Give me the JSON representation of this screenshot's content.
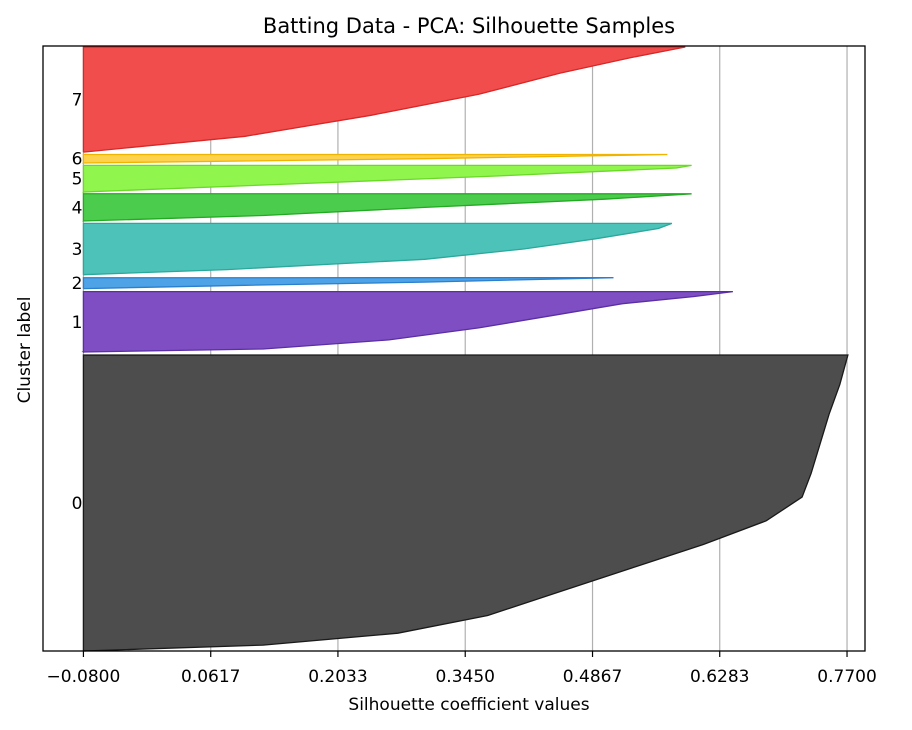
{
  "chart_data": {
    "type": "area",
    "title": "Batting Data - PCA: Silhouette Samples",
    "xlabel": "Silhouette coefficient values",
    "ylabel": "Cluster label",
    "xticks": [
      -0.08,
      0.0617,
      0.2033,
      0.345,
      0.4867,
      0.6283,
      0.77
    ],
    "xtick_labels": [
      "−0.0800",
      "0.0617",
      "0.2033",
      "0.3450",
      "0.4867",
      "0.6283",
      "0.7700"
    ],
    "xlim": [
      -0.125,
      0.79
    ],
    "grid": "vertical",
    "clusters": [
      {
        "label": "0",
        "color": "#4d4d4d",
        "edge": "#1a1a1a",
        "range": [
          0.0,
          0.49
        ],
        "profile": [
          [
            0.0,
            -0.08
          ],
          [
            0.02,
            0.12
          ],
          [
            0.06,
            0.27
          ],
          [
            0.12,
            0.37
          ],
          [
            0.2,
            0.45
          ],
          [
            0.28,
            0.53
          ],
          [
            0.36,
            0.61
          ],
          [
            0.44,
            0.68
          ],
          [
            0.52,
            0.72
          ],
          [
            0.6,
            0.73
          ],
          [
            0.7,
            0.74
          ],
          [
            0.8,
            0.75
          ],
          [
            0.9,
            0.762
          ],
          [
            1.0,
            0.771
          ]
        ]
      },
      {
        "label": "1",
        "color": "#7e4ec2",
        "edge": "#5a2fa6",
        "range": [
          0.495,
          0.595
        ],
        "profile": [
          [
            0.0,
            -0.08
          ],
          [
            0.05,
            0.12
          ],
          [
            0.2,
            0.26
          ],
          [
            0.4,
            0.36
          ],
          [
            0.6,
            0.44
          ],
          [
            0.8,
            0.52
          ],
          [
            0.92,
            0.6
          ],
          [
            1.0,
            0.643
          ]
        ]
      },
      {
        "label": "2",
        "color": "#4da3e6",
        "edge": "#2a7fcf",
        "range": [
          0.6,
          0.618
        ],
        "profile": [
          [
            0.0,
            -0.08
          ],
          [
            0.3,
            0.1
          ],
          [
            0.6,
            0.3
          ],
          [
            1.0,
            0.51
          ]
        ]
      },
      {
        "label": "3",
        "color": "#4cc2b8",
        "edge": "#2aa89c",
        "range": [
          0.623,
          0.708
        ],
        "profile": [
          [
            0.0,
            -0.08
          ],
          [
            0.1,
            0.08
          ],
          [
            0.3,
            0.3
          ],
          [
            0.5,
            0.41
          ],
          [
            0.7,
            0.49
          ],
          [
            0.9,
            0.56
          ],
          [
            1.0,
            0.575
          ]
        ]
      },
      {
        "label": "4",
        "color": "#4ccc4c",
        "edge": "#22aa22",
        "range": [
          0.712,
          0.757
        ],
        "profile": [
          [
            0.0,
            -0.08
          ],
          [
            0.2,
            0.12
          ],
          [
            0.5,
            0.3
          ],
          [
            0.8,
            0.5
          ],
          [
            1.0,
            0.597
          ]
        ]
      },
      {
        "label": "5",
        "color": "#90f54d",
        "edge": "#6ad928",
        "range": [
          0.76,
          0.804
        ],
        "profile": [
          [
            0.0,
            -0.08
          ],
          [
            0.3,
            0.15
          ],
          [
            0.6,
            0.38
          ],
          [
            0.9,
            0.58
          ],
          [
            1.0,
            0.597
          ]
        ]
      },
      {
        "label": "6",
        "color": "#ffd24d",
        "edge": "#f0b400",
        "range": [
          0.808,
          0.822
        ],
        "profile": [
          [
            0.0,
            -0.08
          ],
          [
            0.5,
            0.3
          ],
          [
            1.0,
            0.57
          ]
        ]
      },
      {
        "label": "7",
        "color": "#f24d4d",
        "edge": "#d92626",
        "range": [
          0.826,
          1.0
        ],
        "profile": [
          [
            0.0,
            -0.08
          ],
          [
            0.15,
            0.1
          ],
          [
            0.35,
            0.24
          ],
          [
            0.55,
            0.36
          ],
          [
            0.75,
            0.45
          ],
          [
            0.9,
            0.53
          ],
          [
            1.0,
            0.59
          ]
        ]
      }
    ]
  }
}
